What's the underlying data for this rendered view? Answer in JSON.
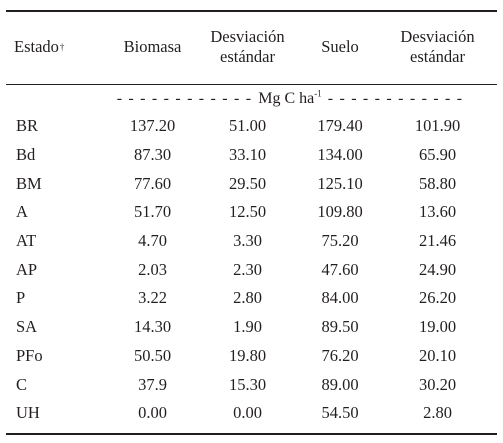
{
  "table": {
    "headers": {
      "estado": "Estado",
      "estado_mark": "†",
      "biomasa": "Biomasa",
      "desv1_line1": "Desviación",
      "desv1_line2": "estándar",
      "suelo": "Suelo",
      "desv2_line1": "Desviación",
      "desv2_line2": "estándar"
    },
    "units": {
      "dashes_left": "- - - - - - - - - - - -",
      "label": "Mg C ha",
      "exponent": "-1",
      "dashes_right": "- - - - - - - - - - - -"
    },
    "rows": [
      {
        "estado": "BR",
        "biomasa": "137.20",
        "desv_biomasa": "51.00",
        "suelo": "179.40",
        "desv_suelo": "101.90"
      },
      {
        "estado": "Bd",
        "biomasa": "87.30",
        "desv_biomasa": "33.10",
        "suelo": "134.00",
        "desv_suelo": "65.90"
      },
      {
        "estado": "BM",
        "biomasa": "77.60",
        "desv_biomasa": "29.50",
        "suelo": "125.10",
        "desv_suelo": "58.80"
      },
      {
        "estado": "A",
        "biomasa": "51.70",
        "desv_biomasa": "12.50",
        "suelo": "109.80",
        "desv_suelo": "13.60"
      },
      {
        "estado": "AT",
        "biomasa": "4.70",
        "desv_biomasa": "3.30",
        "suelo": "75.20",
        "desv_suelo": "21.46"
      },
      {
        "estado": "AP",
        "biomasa": "2.03",
        "desv_biomasa": "2.30",
        "suelo": "47.60",
        "desv_suelo": "24.90"
      },
      {
        "estado": "P",
        "biomasa": "3.22",
        "desv_biomasa": "2.80",
        "suelo": "84.00",
        "desv_suelo": "26.20"
      },
      {
        "estado": "SA",
        "biomasa": "14.30",
        "desv_biomasa": "1.90",
        "suelo": "89.50",
        "desv_suelo": "19.00"
      },
      {
        "estado": "PFo",
        "biomasa": "50.50",
        "desv_biomasa": "19.80",
        "suelo": "76.20",
        "desv_suelo": "20.10"
      },
      {
        "estado": "C",
        "biomasa": "37.9",
        "desv_biomasa": "15.30",
        "suelo": "89.00",
        "desv_suelo": "30.20"
      },
      {
        "estado": "UH",
        "biomasa": "0.00",
        "desv_biomasa": "0.00",
        "suelo": "54.50",
        "desv_suelo": "2.80"
      }
    ]
  }
}
